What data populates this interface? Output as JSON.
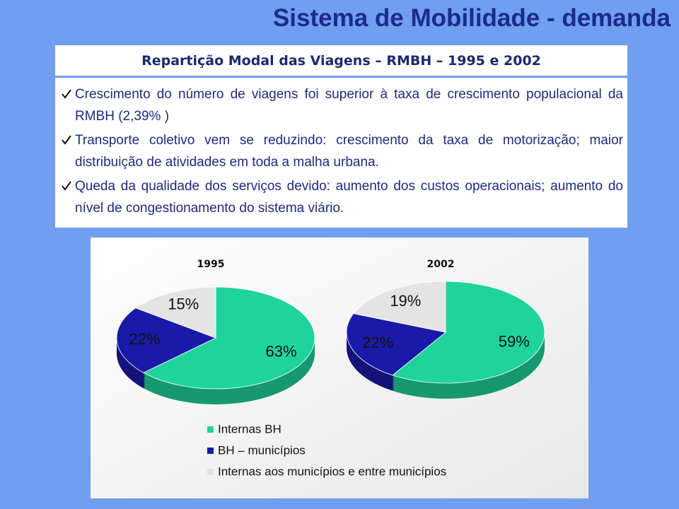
{
  "title": "Sistema de Mobilidade - demanda",
  "subtitle": "Repartição Modal das Viagens – RMBH – 1995 e 2002",
  "bullets": [
    "Crescimento do número de viagens foi  superior à taxa de crescimento populacional da RMBH (2,39% )",
    "Transporte coletivo vem se reduzindo: crescimento da taxa de motorização; maior distribuição de atividades em toda a malha urbana.",
    "Queda da qualidade dos serviços devido: aumento dos custos operacionais; aumento do nível de congestionamento do sistema viário."
  ],
  "chart_data": {
    "type": "pie",
    "categories": [
      "Internas BH",
      "BH – municípios",
      "Internas aos municípios e entre municípios"
    ],
    "colors": [
      "#1fd49a",
      "#1a1aaa",
      "#e4e4e4"
    ],
    "series": [
      {
        "name": "1995",
        "values": [
          63,
          22,
          15
        ],
        "value_labels": [
          "63%",
          "22%",
          "15%"
        ]
      },
      {
        "name": "2002",
        "values": [
          59,
          22,
          19
        ],
        "value_labels": [
          "59%",
          "22%",
          "19%"
        ]
      }
    ],
    "legend": "bottom"
  }
}
